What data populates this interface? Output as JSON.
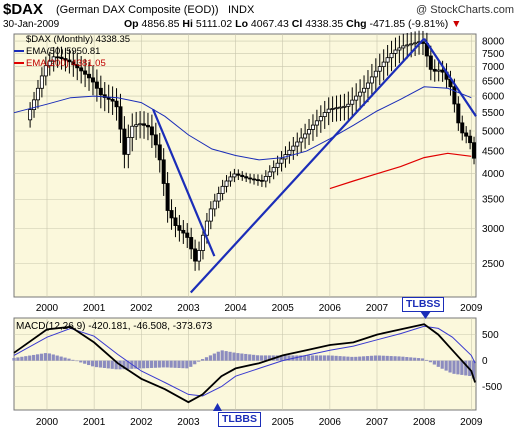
{
  "header": {
    "symbol": "$DAX",
    "name": "(German DAX Composite (EOD))",
    "exchange": "INDX",
    "copyright": "@ StockCharts.com",
    "date": "30-Jan-2009",
    "open_label": "Op",
    "open": "4856.85",
    "high_label": "Hi",
    "high": "5111.02",
    "low_label": "Lo",
    "low": "4067.43",
    "close_label": "Cl",
    "close": "4338.35",
    "change_label": "Chg",
    "change": "-471.85 (-9.81%)",
    "change_icon": "down-triangle-icon"
  },
  "legend": {
    "price": "$DAX (Monthly) 4338.35",
    "ema50": "EMA(50) 5950.81",
    "ema200": "EMA(200) 4381.05"
  },
  "macd": {
    "label": "MACD(12,26,9) -420.181, -46.508, -373.673"
  },
  "annotations": {
    "tlbss_top": "TLBSS",
    "tlbbs_bottom": "TLBBS"
  },
  "colors": {
    "panel_bg": "#fbf8dc",
    "grid": "#c9c7ae",
    "candle": "#000000",
    "ema50": "#1b2db8",
    "ema200": "#e00000",
    "trendline": "#1b2db8",
    "hist": "#8c8cbf",
    "signal": "#3a3ad0"
  },
  "chart_data": [
    {
      "type": "candlestick",
      "title": "$DAX (German DAX Composite (EOD))",
      "x_ticks": [
        "2000",
        "2001",
        "2002",
        "2003",
        "2004",
        "2005",
        "2006",
        "2007",
        "2008",
        "2009"
      ],
      "y_ticks": [
        2500,
        3000,
        3500,
        4000,
        4500,
        5000,
        5500,
        6000,
        6500,
        7000,
        7500,
        8000
      ],
      "y_scale": "log",
      "ylim": [
        2100,
        8300
      ],
      "xlim": [
        1999.3,
        2009.1
      ],
      "grid": true,
      "series_price_approx": {
        "x": [
          1999.6,
          1999.8,
          2000.0,
          2000.2,
          2000.5,
          2000.8,
          2001.0,
          2001.2,
          2001.5,
          2001.7,
          2001.8,
          2002.0,
          2002.2,
          2002.4,
          2002.6,
          2002.8,
          2003.0,
          2003.2,
          2003.5,
          2003.8,
          2004.0,
          2004.3,
          2004.6,
          2005.0,
          2005.5,
          2006.0,
          2006.4,
          2006.8,
          2007.0,
          2007.4,
          2007.6,
          2008.0,
          2008.2,
          2008.4,
          2008.6,
          2008.8,
          2009.0,
          2009.08
        ],
        "y": [
          5300,
          6000,
          7000,
          7400,
          7200,
          6800,
          6500,
          6000,
          5800,
          4300,
          5100,
          5200,
          5100,
          4500,
          3300,
          3000,
          2900,
          2500,
          3300,
          3800,
          4000,
          3900,
          3850,
          4300,
          4900,
          5600,
          5700,
          6300,
          6800,
          7600,
          7800,
          8000,
          6800,
          6900,
          6300,
          5000,
          4800,
          4338
        ]
      },
      "series": [
        {
          "name": "EMA(50)",
          "x": [
            1999.3,
            2000.0,
            2000.5,
            2001.0,
            2001.5,
            2002.0,
            2002.5,
            2003.0,
            2003.5,
            2004.0,
            2004.5,
            2005.0,
            2005.5,
            2006.0,
            2006.5,
            2007.0,
            2007.5,
            2008.0,
            2008.5,
            2009.0
          ],
          "y": [
            5500,
            5750,
            5950,
            6000,
            5950,
            5800,
            5400,
            4900,
            4550,
            4400,
            4300,
            4350,
            4500,
            4800,
            5150,
            5550,
            5900,
            6300,
            6250,
            5950
          ]
        },
        {
          "name": "EMA(200)",
          "x": [
            2006.0,
            2006.5,
            2007.0,
            2007.5,
            2008.0,
            2008.5,
            2009.0
          ],
          "y": [
            3700,
            3850,
            4000,
            4150,
            4350,
            4450,
            4381
          ]
        }
      ],
      "trendlines": [
        {
          "x": [
            2002.25,
            2003.55
          ],
          "y": [
            5600,
            2600
          ]
        },
        {
          "x": [
            2003.05,
            2008.0
          ],
          "y": [
            2150,
            8100
          ]
        },
        {
          "x": [
            2008.0,
            2009.1
          ],
          "y": [
            8100,
            5400
          ]
        }
      ]
    },
    {
      "type": "line",
      "title": "MACD(12,26,9)",
      "x_ticks": [
        "2000",
        "2001",
        "2002",
        "2003",
        "2004",
        "2005",
        "2006",
        "2007",
        "2008",
        "2009"
      ],
      "y_ticks": [
        500,
        0,
        -500
      ],
      "ylim": [
        -950,
        820
      ],
      "xlim": [
        1999.3,
        2009.1
      ],
      "series": [
        {
          "name": "MACD",
          "x": [
            1999.3,
            2000.0,
            2000.5,
            2001.0,
            2001.5,
            2002.0,
            2002.5,
            2003.0,
            2003.3,
            2003.7,
            2004.0,
            2004.5,
            2005.0,
            2005.5,
            2006.0,
            2006.5,
            2007.0,
            2007.5,
            2008.0,
            2008.3,
            2008.6,
            2009.0,
            2009.08
          ],
          "y": [
            150,
            600,
            650,
            350,
            -50,
            -350,
            -550,
            -800,
            -650,
            -300,
            -150,
            -50,
            100,
            200,
            300,
            350,
            500,
            600,
            700,
            500,
            200,
            -200,
            -420
          ]
        },
        {
          "name": "Signal",
          "x": [
            1999.3,
            2000.0,
            2000.5,
            2001.0,
            2001.5,
            2002.0,
            2002.5,
            2003.0,
            2003.3,
            2003.7,
            2004.0,
            2004.5,
            2005.0,
            2005.5,
            2006.0,
            2006.5,
            2007.0,
            2007.5,
            2008.0,
            2008.3,
            2008.6,
            2009.0,
            2009.08
          ],
          "y": [
            100,
            450,
            620,
            470,
            120,
            -200,
            -420,
            -650,
            -680,
            -500,
            -300,
            -150,
            0,
            100,
            200,
            280,
            400,
            520,
            660,
            620,
            450,
            100,
            -47
          ]
        },
        {
          "name": "Histogram",
          "x": [
            1999.3,
            2000.0,
            2000.5,
            2001.0,
            2001.5,
            2002.0,
            2002.5,
            2003.0,
            2003.3,
            2003.7,
            2004.0,
            2004.5,
            2005.0,
            2005.5,
            2006.0,
            2006.5,
            2007.0,
            2007.5,
            2008.0,
            2008.3,
            2008.6,
            2009.0,
            2009.08
          ],
          "y": [
            50,
            150,
            30,
            -120,
            -170,
            -150,
            -130,
            -150,
            30,
            200,
            150,
            100,
            100,
            100,
            100,
            70,
            100,
            80,
            40,
            -120,
            -250,
            -300,
            -374
          ]
        }
      ]
    }
  ]
}
